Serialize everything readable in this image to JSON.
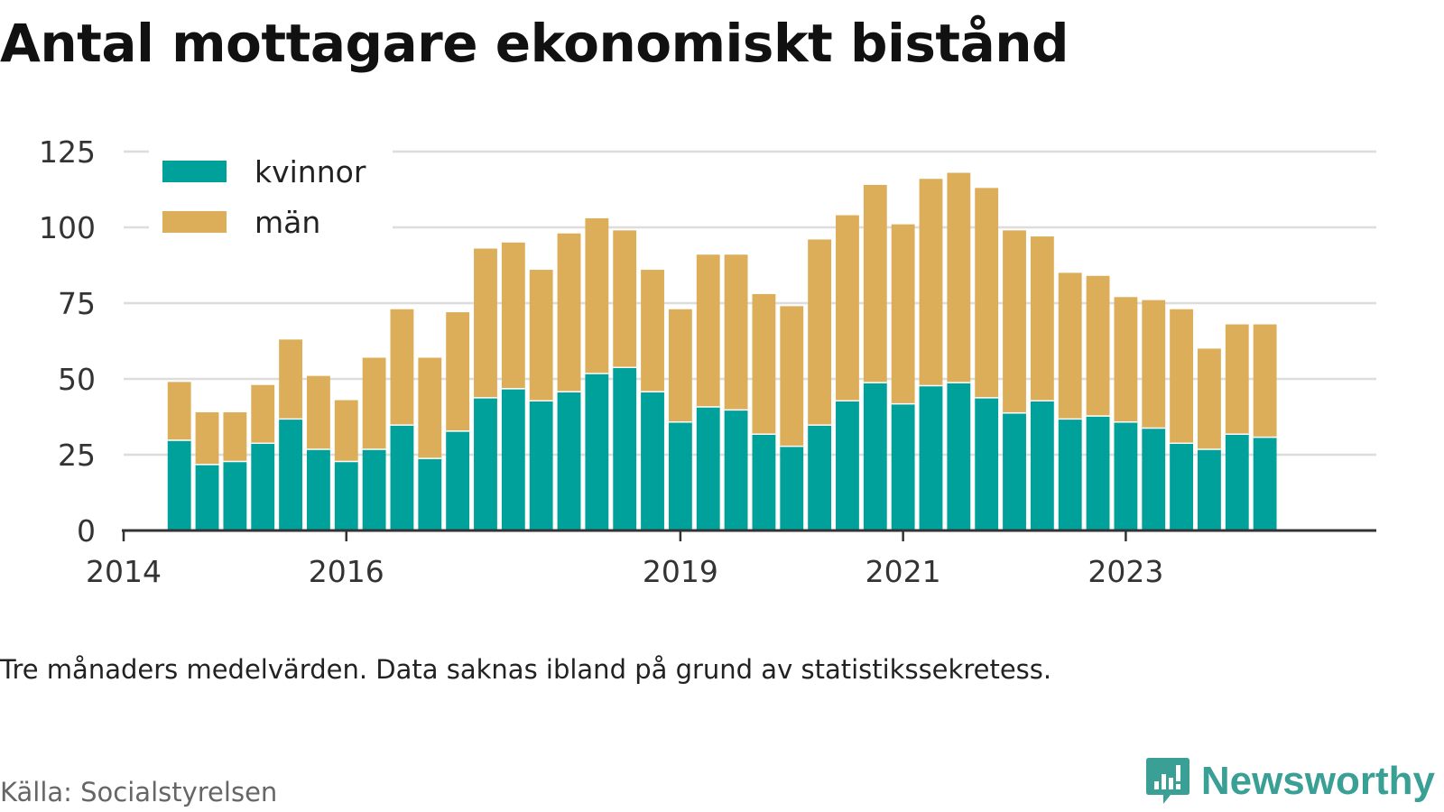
{
  "title": "Antal mottagare ekonomiskt bistånd",
  "note": "Tre månaders medelvärden. Data saknas ibland på grund av statistikssekretess.",
  "source": "Källa: Socialstyrelsen",
  "brand": "Newsworthy",
  "colors": {
    "kvinnor": "#00a19a",
    "man": "#dcae5a",
    "grid": "#dddddd",
    "axis": "#333333",
    "brand": "#3aa095"
  },
  "chart_data": {
    "type": "bar",
    "stacked": true,
    "legend_position": "top-left",
    "grid": true,
    "ylim": [
      0,
      125
    ],
    "yticks": [
      "0",
      "25",
      "50",
      "75",
      "100",
      "125"
    ],
    "xticks": [
      "2014",
      "2016",
      "2019",
      "2021",
      "2023"
    ],
    "xlim": [
      2014,
      2025.25
    ],
    "categories": [
      "2014-07",
      "2014-10",
      "2015-01",
      "2015-04",
      "2015-07",
      "2015-10",
      "2016-01",
      "2016-04",
      "2016-07",
      "2016-10",
      "2017-01",
      "2017-04",
      "2017-07",
      "2017-10",
      "2018-01",
      "2018-04",
      "2018-07",
      "2018-10",
      "2019-01",
      "2019-04",
      "2019-07",
      "2019-10",
      "2020-01",
      "2020-04",
      "2020-07",
      "2020-10",
      "2021-01",
      "2021-04",
      "2021-07",
      "2021-10",
      "2022-01",
      "2022-04",
      "2022-07",
      "2022-10",
      "2023-01",
      "2023-04",
      "2023-07",
      "2023-10",
      "2024-01",
      "2024-04"
    ],
    "series": [
      {
        "name": "kvinnor",
        "values": [
          30,
          22,
          23,
          29,
          37,
          27,
          23,
          27,
          35,
          24,
          33,
          44,
          47,
          43,
          46,
          52,
          54,
          46,
          36,
          41,
          40,
          32,
          28,
          35,
          43,
          49,
          42,
          48,
          49,
          44,
          39,
          43,
          37,
          38,
          36,
          34,
          29,
          27,
          32,
          31
        ]
      },
      {
        "name": "män",
        "values": [
          19,
          17,
          16,
          19,
          26,
          24,
          20,
          30,
          38,
          33,
          39,
          49,
          48,
          43,
          52,
          51,
          45,
          40,
          37,
          50,
          51,
          46,
          46,
          61,
          61,
          65,
          59,
          68,
          69,
          69,
          60,
          54,
          48,
          46,
          41,
          42,
          44,
          33,
          36,
          37
        ]
      }
    ]
  }
}
